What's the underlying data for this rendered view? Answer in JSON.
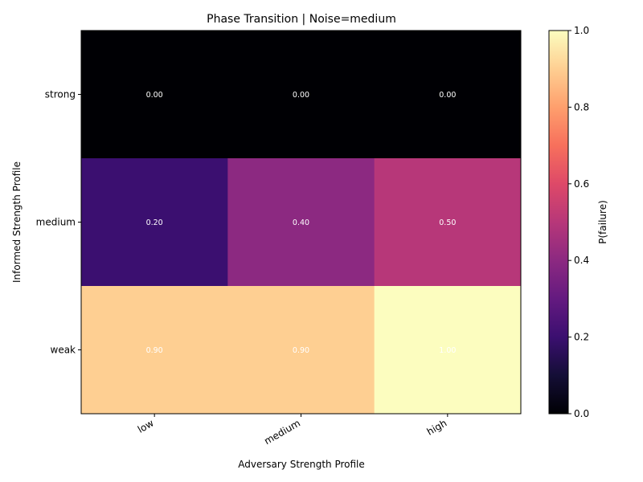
{
  "chart_data": {
    "type": "heatmap",
    "title": "Phase Transition | Noise=medium",
    "xlabel": "Adversary Strength Profile",
    "ylabel": "Informed Strength Profile",
    "x_categories": [
      "low",
      "medium",
      "high"
    ],
    "y_categories": [
      "strong",
      "medium",
      "weak"
    ],
    "values": [
      [
        0.0,
        0.0,
        0.0
      ],
      [
        0.2,
        0.4,
        0.5
      ],
      [
        0.9,
        0.9,
        1.0
      ]
    ],
    "value_labels": [
      [
        "0.00",
        "0.00",
        "0.00"
      ],
      [
        "0.20",
        "0.40",
        "0.50"
      ],
      [
        "0.90",
        "0.90",
        "1.00"
      ]
    ],
    "colorbar": {
      "label": "P(failure)",
      "range": [
        0.0,
        1.0
      ],
      "ticks": [
        "0.0",
        "0.2",
        "0.4",
        "0.6",
        "0.8",
        "1.0"
      ],
      "colormap": "magma"
    },
    "grid": false
  }
}
